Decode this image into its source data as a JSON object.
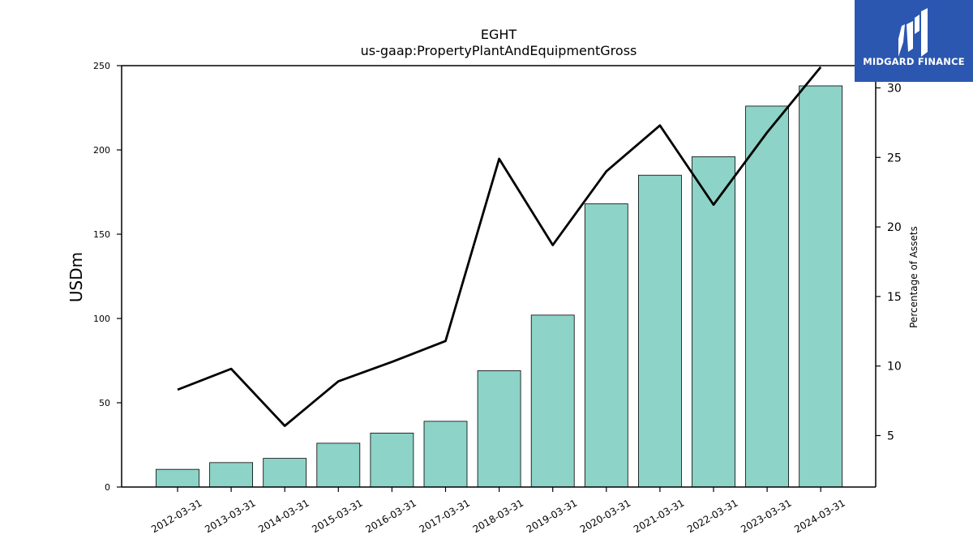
{
  "logo": {
    "text": "MIDGARD FINANCE",
    "color": "#2b57b0"
  },
  "chart_data": {
    "type": "bar",
    "title": "EGHT",
    "subtitle": "us-gaap:PropertyPlantAndEquipmentGross",
    "ylabel": "USDm",
    "y2label": "Percentage of Assets",
    "categories": [
      "2012-03-31",
      "2013-03-31",
      "2014-03-31",
      "2015-03-31",
      "2016-03-31",
      "2017-03-31",
      "2018-03-31",
      "2019-03-31",
      "2020-03-31",
      "2021-03-31",
      "2022-03-31",
      "2023-03-31",
      "2024-03-31"
    ],
    "series": [
      {
        "type": "bar",
        "axis": "left",
        "color": "#8dd3c7",
        "values": [
          10.5,
          14.5,
          17,
          26,
          32,
          39,
          69,
          102,
          168,
          185,
          196,
          226,
          238
        ]
      },
      {
        "type": "line",
        "axis": "right",
        "color": "#000000",
        "values": [
          8.3,
          9.8,
          5.7,
          8.9,
          10.3,
          11.8,
          24.9,
          18.7,
          24.0,
          27.3,
          21.6,
          26.8,
          31.5
        ]
      }
    ],
    "ylim": [
      0,
      250
    ],
    "y2lim": [
      1.3,
      31.6
    ],
    "yticks": [
      0,
      50,
      100,
      150,
      200,
      250
    ],
    "y2ticks": [
      5,
      10,
      15,
      20,
      25,
      30
    ],
    "grid": false
  }
}
